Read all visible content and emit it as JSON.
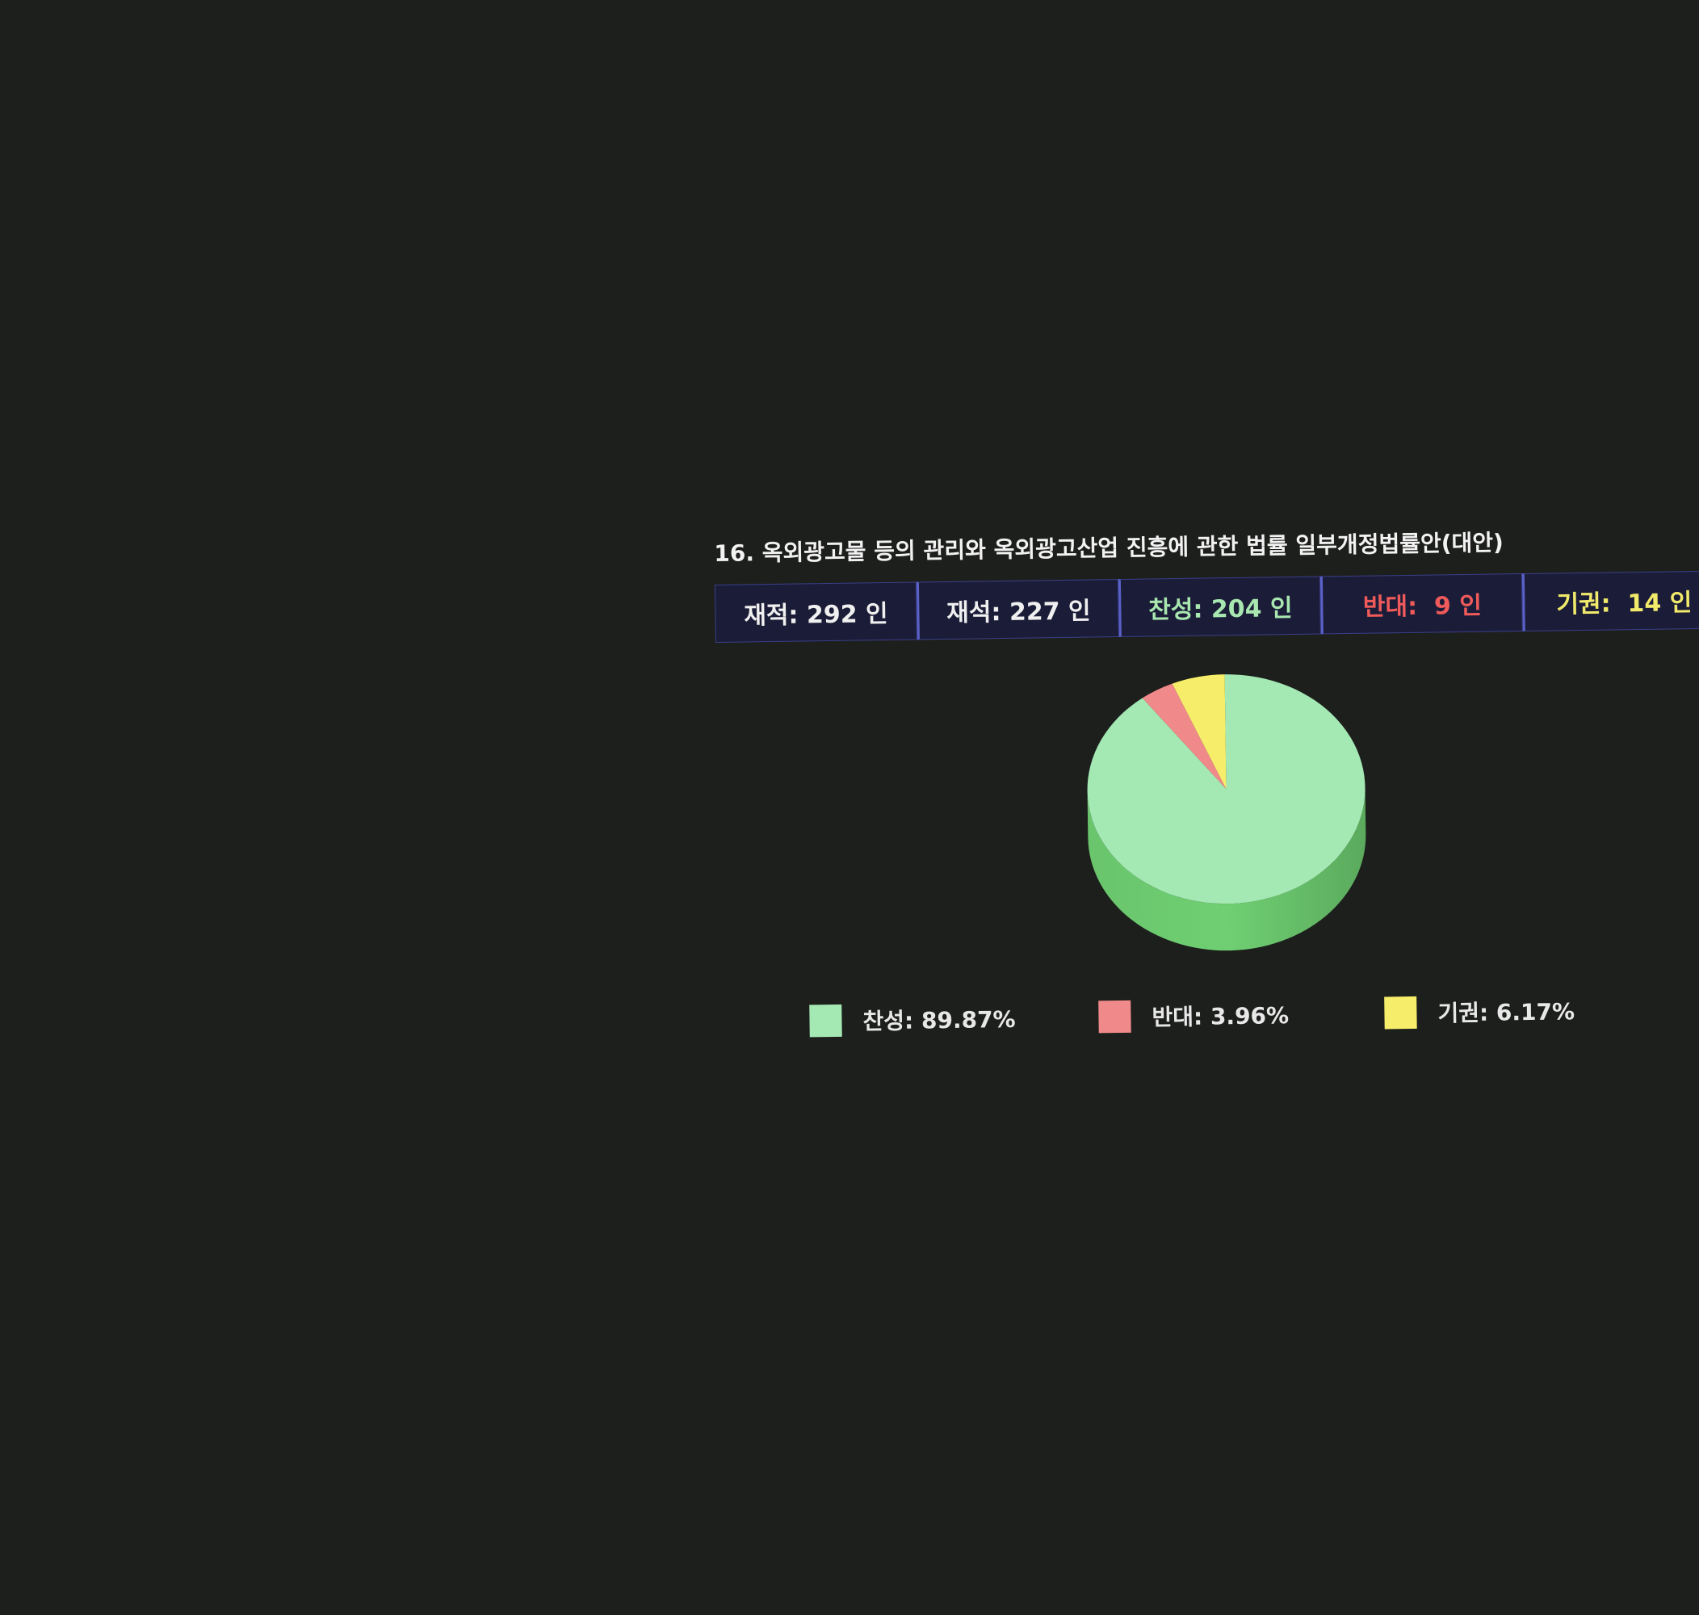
{
  "title": "16. 옥외광고물 등의 관리와 옥외광고산업 진흥에 관한 법률 일부개정법률안(대안)",
  "stats": [
    {
      "label": "재적:",
      "value": "292 인",
      "color": "white"
    },
    {
      "label": "재석:",
      "value": "227 인",
      "color": "white"
    },
    {
      "label": "찬성:",
      "value": "204 인",
      "color": "green"
    },
    {
      "label": "반대:",
      "value": "9 인",
      "color": "red"
    },
    {
      "label": "기권:",
      "value": "14 인",
      "color": "yellow"
    }
  ],
  "colors": {
    "yes": "#a4e8b4",
    "yes_side": "#6fcf72",
    "no": "#f08a8a",
    "no_side": "#c96464",
    "abstain": "#f6ee6a",
    "abstain_side": "#c9c14c"
  },
  "chart_data": {
    "type": "pie",
    "title": "",
    "series": [
      {
        "name": "찬성",
        "value": 89.87,
        "color": "#a4e8b4"
      },
      {
        "name": "반대",
        "value": 3.96,
        "color": "#f08a8a"
      },
      {
        "name": "기권",
        "value": 6.17,
        "color": "#f6ee6a"
      }
    ],
    "legend": [
      {
        "label": "찬성: 89.87%",
        "color": "#a4e8b4"
      },
      {
        "label": "반대: 3.96%",
        "color": "#f08a8a"
      },
      {
        "label": "기권: 6.17%",
        "color": "#f6ee6a"
      }
    ],
    "legend_position": "bottom",
    "style": "3d"
  }
}
